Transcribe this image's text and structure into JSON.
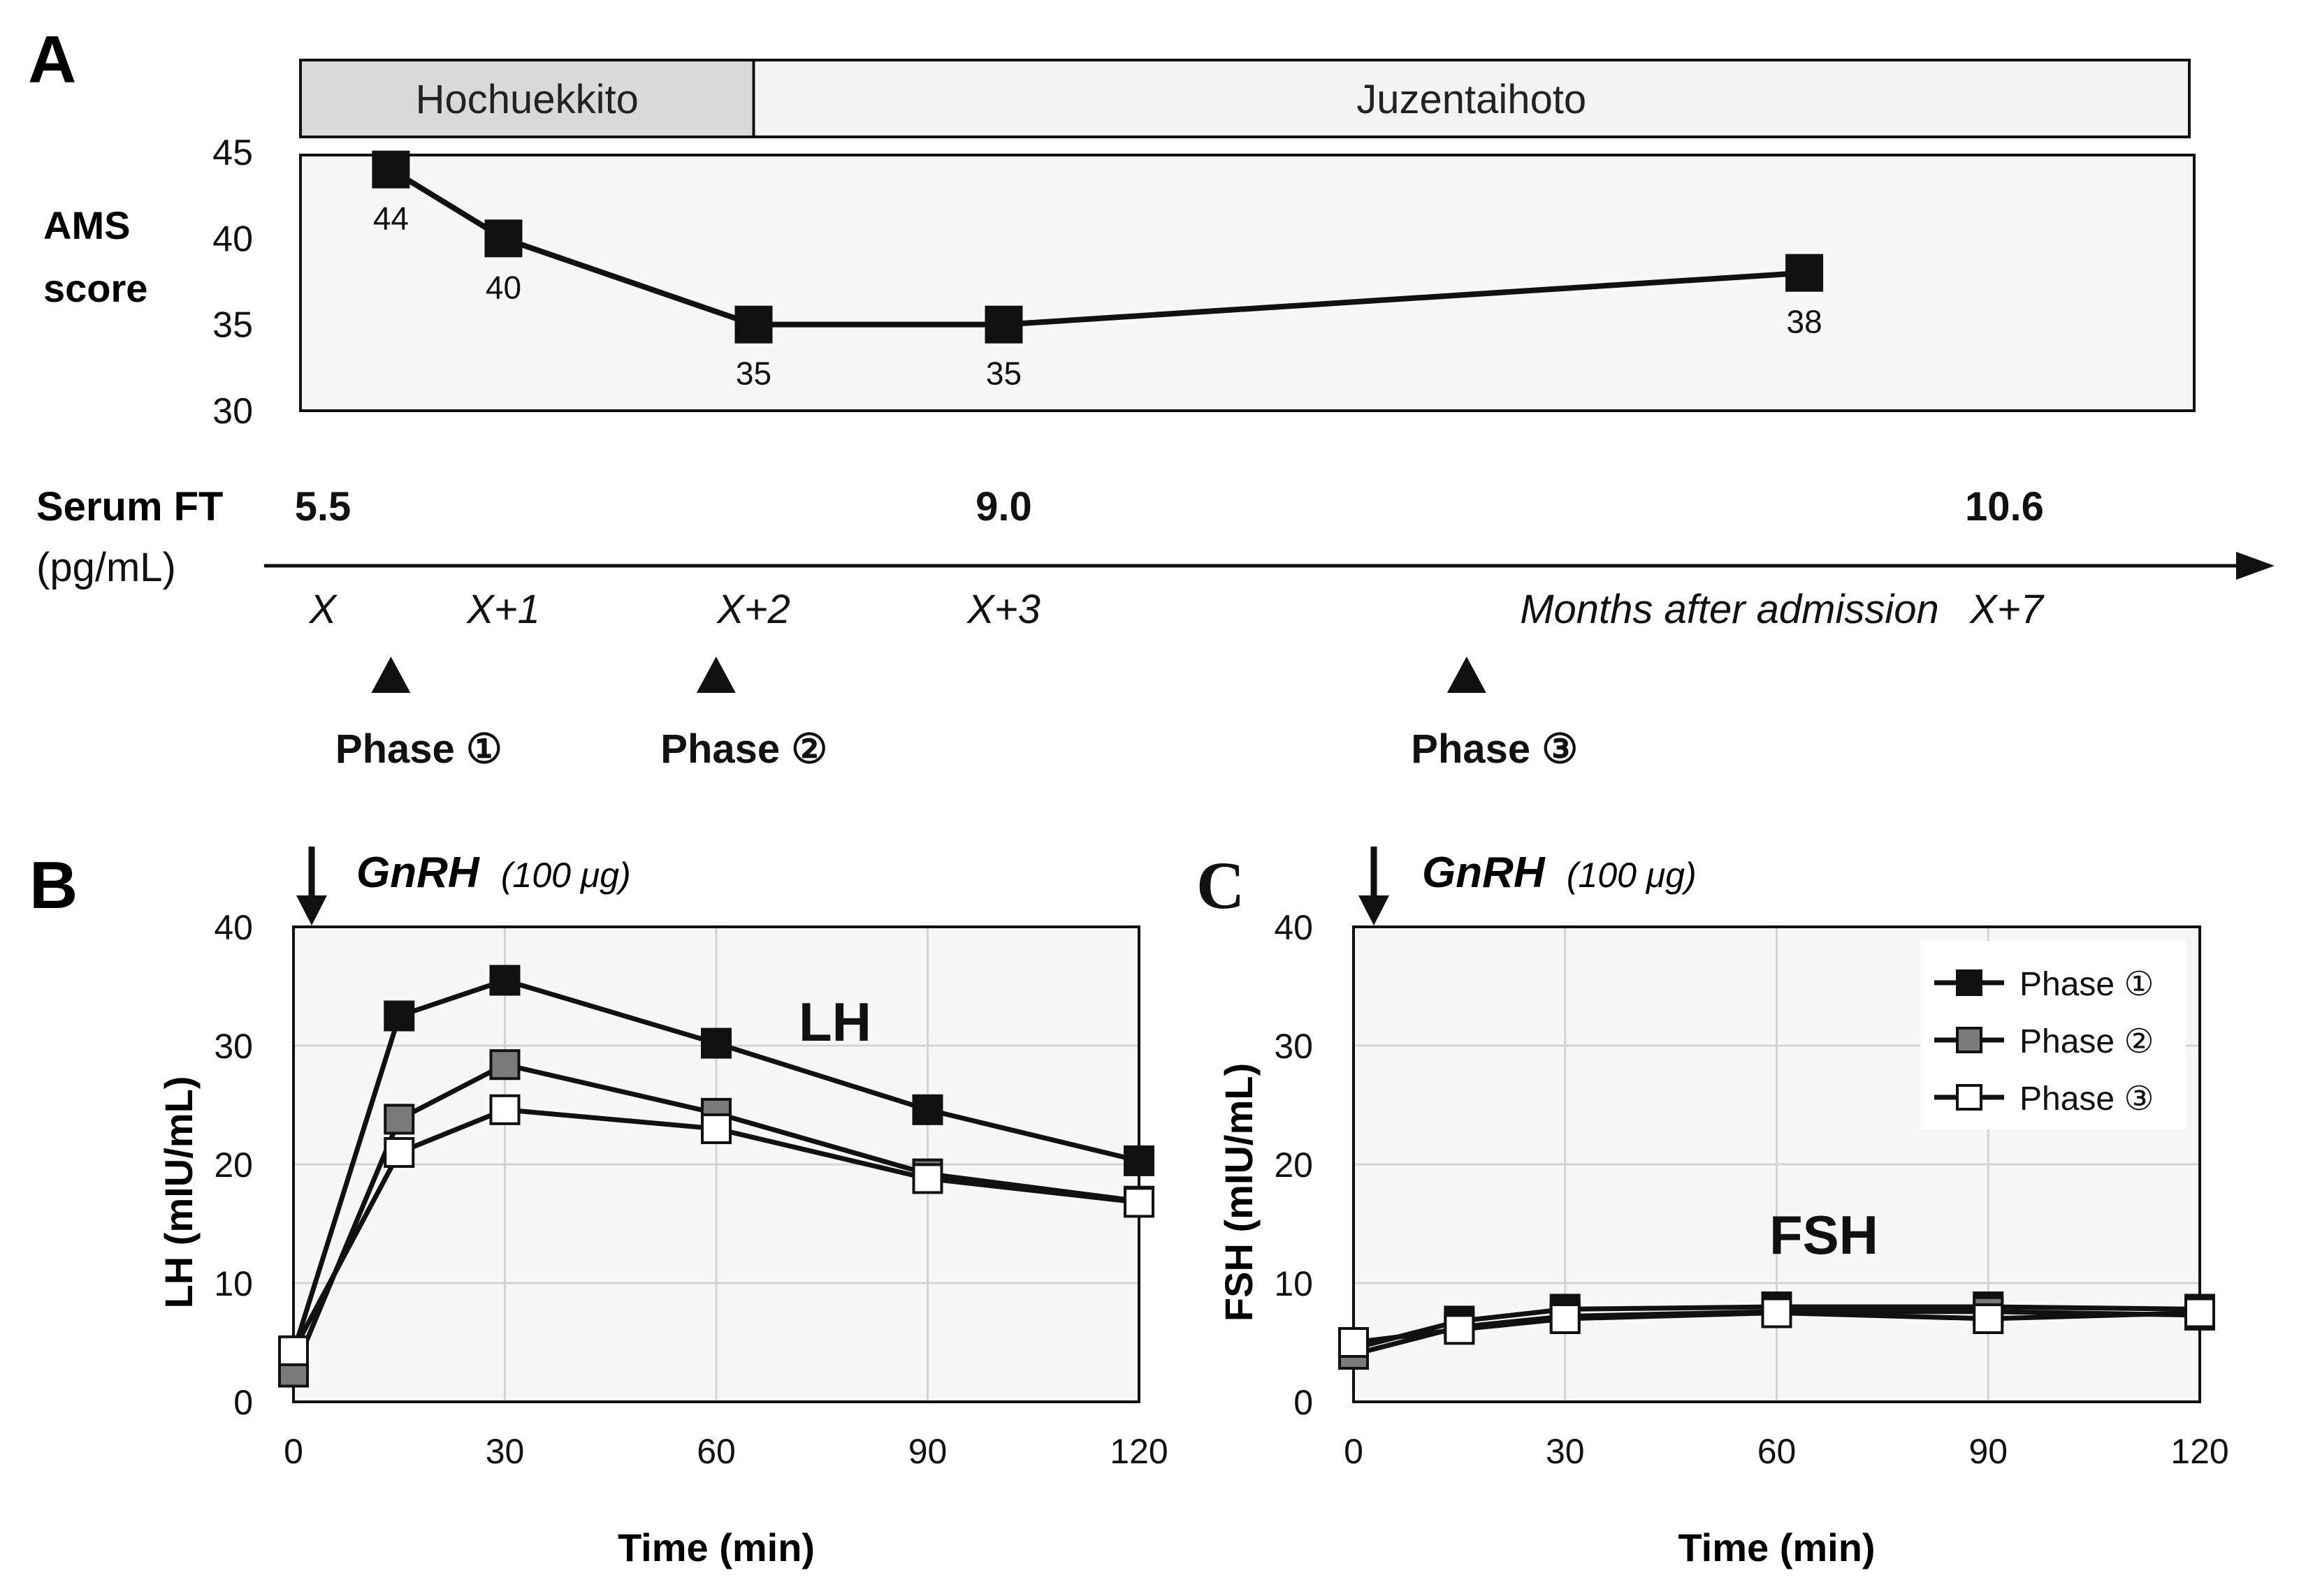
{
  "panels": {
    "A": {
      "letter": "A",
      "treatments": [
        "Hochuekkito",
        "Juzentaihoto"
      ],
      "ylabel_line1": "AMS",
      "ylabel_line2": "score",
      "ft_label": "Serum FT",
      "ft_unit": "(pg/mL)",
      "axis_caption": "Months after admission",
      "ft_values": [
        {
          "tick": "X",
          "value": "5.5"
        },
        {
          "tick": "X+3",
          "value": "9.0"
        },
        {
          "tick": "X+7",
          "value": "10.6"
        }
      ],
      "phases": [
        {
          "label": "Phase ①",
          "at_month": 0.3
        },
        {
          "label": "Phase ②",
          "at_month": 1.6
        },
        {
          "label": "Phase ③",
          "at_month": 4.6
        }
      ]
    },
    "B": {
      "letter": "B",
      "stimulus": "GnRH",
      "dose": "(100 μg)",
      "hormone": "LH"
    },
    "C": {
      "letter": "C",
      "stimulus": "GnRH",
      "dose": "(100 μg)",
      "hormone": "FSH"
    }
  },
  "chart_data": [
    {
      "type": "line",
      "panel": "A",
      "ylabel": "AMS score",
      "xlabel": "Months after admission",
      "ylim": [
        30,
        45
      ],
      "yticks": [
        30,
        35,
        40,
        45
      ],
      "x_ticks": [
        {
          "label": "X",
          "pos": 0
        },
        {
          "label": "X+1",
          "pos": 0.75
        },
        {
          "label": "X+2",
          "pos": 1.75
        },
        {
          "label": "X+3",
          "pos": 2.75
        },
        {
          "label": "X+7",
          "pos": 6.75
        }
      ],
      "treatment_periods": [
        {
          "name": "Hochuekkito",
          "start": -0.05,
          "end": 1.75
        },
        {
          "name": "Juzentaihoto",
          "start": 1.75,
          "end": 6.0
        }
      ],
      "series": [
        {
          "values": [
            {
              "x": 0.3,
              "y": 44,
              "label": "44"
            },
            {
              "x": 0.75,
              "y": 40,
              "label": "40"
            },
            {
              "x": 1.75,
              "y": 35,
              "label": "35"
            },
            {
              "x": 2.75,
              "y": 35,
              "label": "35"
            },
            {
              "x": 5.95,
              "y": 38,
              "label": "38"
            }
          ]
        }
      ],
      "grid": false
    },
    {
      "type": "line",
      "panel": "B",
      "title": "LH",
      "xlabel": "Time (min)",
      "ylabel": "LH (mIU/mL)",
      "x": [
        0,
        15,
        30,
        60,
        90,
        120
      ],
      "xticks": [
        0,
        30,
        60,
        90,
        120
      ],
      "xlim": [
        0,
        120
      ],
      "ylim": [
        0,
        40
      ],
      "yticks": [
        0,
        10,
        20,
        30,
        40
      ],
      "grid": true,
      "legend": "none",
      "series": [
        {
          "name": "Phase ①",
          "marker": "filled-black",
          "values": [
            4.2,
            32.5,
            35.5,
            30.2,
            24.6,
            20.3
          ]
        },
        {
          "name": "Phase ②",
          "marker": "filled-gray",
          "values": [
            2.5,
            23.8,
            28.4,
            24.3,
            19.2,
            16.9
          ]
        },
        {
          "name": "Phase ③",
          "marker": "open-white",
          "values": [
            4.3,
            21.0,
            24.6,
            23.0,
            18.8,
            16.8
          ]
        }
      ]
    },
    {
      "type": "line",
      "panel": "C",
      "title": "FSH",
      "xlabel": "Time (min)",
      "ylabel": "FSH (mIU/mL)",
      "x": [
        0,
        15,
        30,
        60,
        90,
        120
      ],
      "xticks": [
        0,
        30,
        60,
        90,
        120
      ],
      "xlim": [
        0,
        120
      ],
      "ylim": [
        0,
        40
      ],
      "yticks": [
        0,
        10,
        20,
        30,
        40
      ],
      "grid": true,
      "legend": "top-right",
      "series": [
        {
          "name": "Phase ①",
          "marker": "filled-black",
          "values": [
            4.5,
            6.8,
            7.8,
            8.0,
            8.0,
            7.8
          ]
        },
        {
          "name": "Phase ②",
          "marker": "filled-gray",
          "values": [
            4.0,
            6.3,
            7.2,
            7.6,
            7.6,
            7.3
          ]
        },
        {
          "name": "Phase ③",
          "marker": "open-white",
          "values": [
            5.0,
            6.1,
            7.0,
            7.5,
            7.0,
            7.5
          ]
        }
      ]
    }
  ],
  "colors": {
    "line": "#111111",
    "filled_black": "#111111",
    "filled_gray": "#7a7a7a",
    "open_white": "#ffffff",
    "plot_bg": "#f7f7f7",
    "treatment1_bg": "#d9d9d9",
    "treatment2_bg": "#f3f3f3",
    "grid": "#d4d4d4"
  }
}
